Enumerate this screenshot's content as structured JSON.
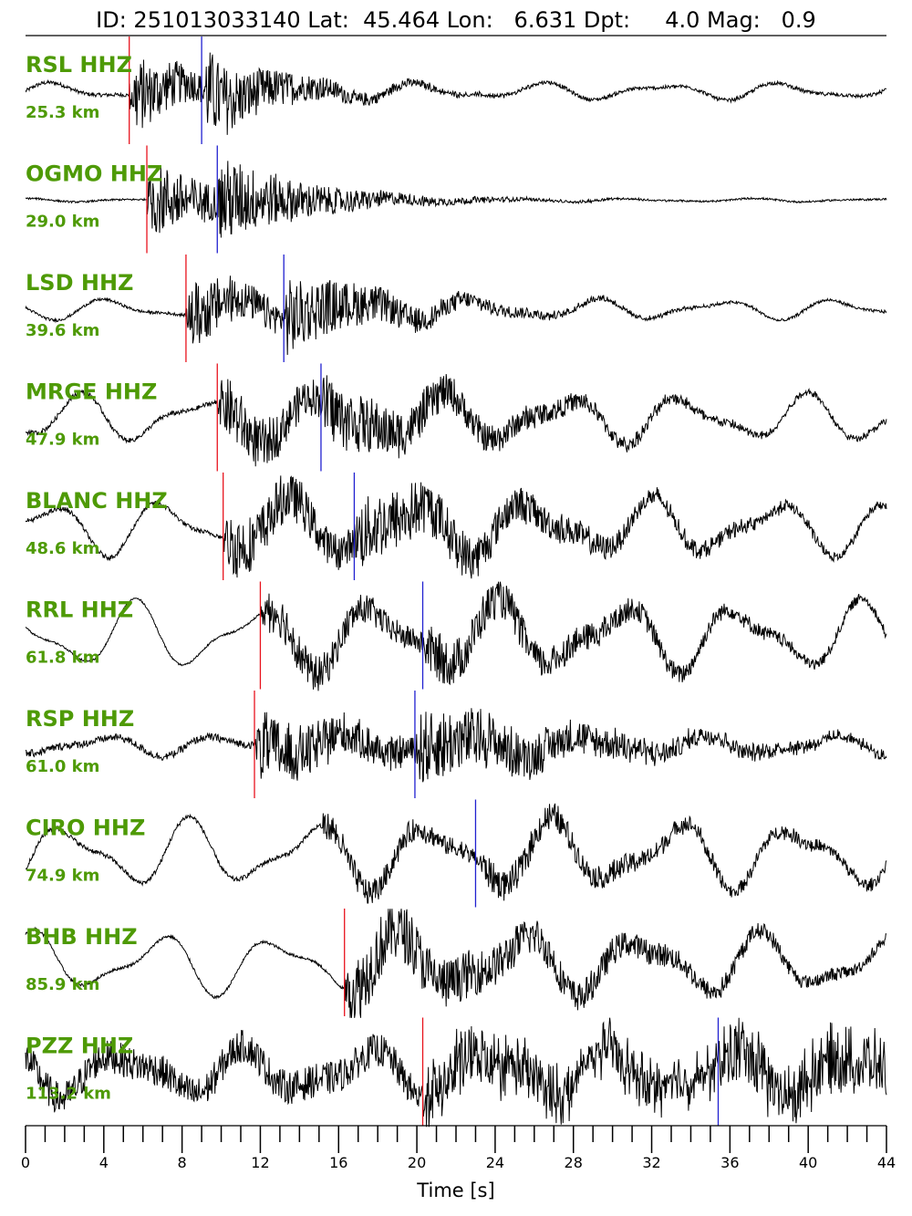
{
  "header": {
    "title": "ID: 251013033140 Lat:  45.464 Lon:   6.631 Dpt:     4.0 Mag:   0.9"
  },
  "colors": {
    "trace": "#000000",
    "p_pick": "#e8121c",
    "s_pick": "#2020d0",
    "label": "#4e9a06"
  },
  "chart_data": {
    "type": "line",
    "title": "ID: 251013033140 Lat:  45.464 Lon:   6.631 Dpt:     4.0 Mag:   0.9",
    "xlabel": "Time [s]",
    "ylabel": "",
    "xlim": [
      0,
      44
    ],
    "x_ticks": [
      0,
      4,
      8,
      12,
      16,
      20,
      24,
      28,
      32,
      36,
      40,
      44
    ],
    "x_minor_step": 1,
    "grid": false,
    "traces": [
      {
        "station": "RSL HHZ",
        "distance": "25.3 km",
        "p_pick": 5.3,
        "s_pick": 9.0,
        "onset": 5.3,
        "noise": 0.04,
        "peak": 1.0,
        "low_freq": 0.25,
        "decay": 0.8
      },
      {
        "station": "OGMO HHZ",
        "distance": "29.0 km",
        "p_pick": 6.2,
        "s_pick": 9.8,
        "onset": 6.2,
        "noise": 0.02,
        "peak": 1.0,
        "low_freq": 0.05,
        "decay": 0.7
      },
      {
        "station": "LSD HHZ",
        "distance": "39.6 km",
        "p_pick": 8.2,
        "s_pick": 13.2,
        "onset": 8.2,
        "noise": 0.03,
        "peak": 0.85,
        "low_freq": 0.3,
        "decay": 0.55
      },
      {
        "station": "MRGE HHZ",
        "distance": "47.9 km",
        "p_pick": 9.8,
        "s_pick": 15.1,
        "onset": 9.8,
        "noise": 0.05,
        "peak": 0.75,
        "low_freq": 0.7,
        "decay": 0.35
      },
      {
        "station": "BLANC HHZ",
        "distance": "48.6 km",
        "p_pick": 10.1,
        "s_pick": 16.8,
        "onset": 10.1,
        "noise": 0.05,
        "peak": 0.8,
        "low_freq": 0.8,
        "decay": 0.3
      },
      {
        "station": "RRL HHZ",
        "distance": "61.8 km",
        "p_pick": 12.0,
        "s_pick": 20.3,
        "onset": 12.0,
        "noise": 0.02,
        "peak": 0.55,
        "low_freq": 1.0,
        "decay": 0.25
      },
      {
        "station": "RSP HHZ",
        "distance": "61.0 km",
        "p_pick": 11.7,
        "s_pick": 19.9,
        "onset": 11.7,
        "noise": 0.08,
        "peak": 0.85,
        "low_freq": 0.3,
        "decay": 0.35
      },
      {
        "station": "CIRO HHZ",
        "distance": "74.9 km",
        "p_pick": null,
        "s_pick": 23.0,
        "onset": 15.0,
        "noise": 0.05,
        "peak": 0.35,
        "low_freq": 1.0,
        "decay": 0.2
      },
      {
        "station": "BHB HHZ",
        "distance": "85.9 km",
        "p_pick": 16.3,
        "s_pick": null,
        "onset": 16.3,
        "noise": 0.03,
        "peak": 0.85,
        "low_freq": 0.9,
        "decay": 0.2
      },
      {
        "station": "PZZ HHZ",
        "distance": "113.2 km",
        "p_pick": 20.3,
        "s_pick": 35.4,
        "onset": 20.3,
        "noise": 0.35,
        "peak": 0.6,
        "low_freq": 0.7,
        "decay": 0.1
      }
    ]
  }
}
